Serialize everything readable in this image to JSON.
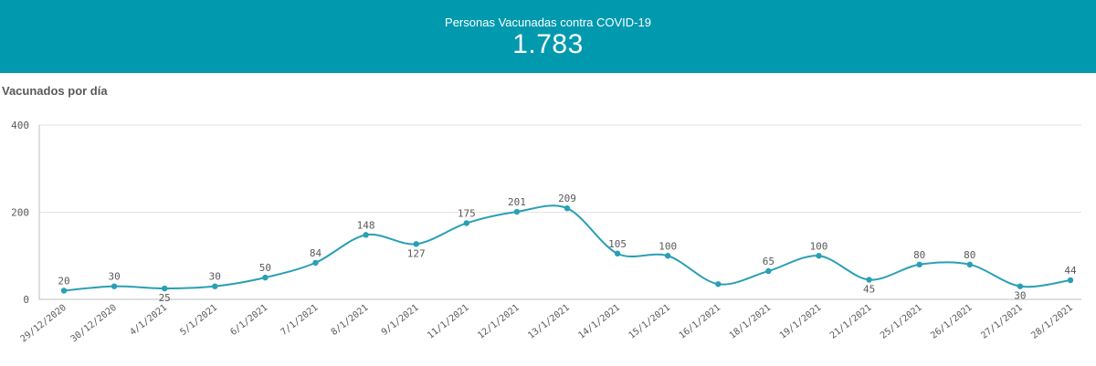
{
  "header": {
    "kpi_label": "Personas Vacunadas contra COVID-19",
    "kpi_value": "1.783",
    "background_color": "#0099ae"
  },
  "chart_data": {
    "type": "line",
    "title": "Vacunados por día",
    "xlabel": "",
    "ylabel": "",
    "ylim": [
      0,
      400
    ],
    "yticks": [
      0,
      200,
      400
    ],
    "grid": true,
    "line_color": "#2a9fb5",
    "categories": [
      "29/12/2020",
      "30/12/2020",
      "4/1/2021",
      "5/1/2021",
      "6/1/2021",
      "7/1/2021",
      "8/1/2021",
      "9/1/2021",
      "11/1/2021",
      "12/1/2021",
      "13/1/2021",
      "14/1/2021",
      "15/1/2021",
      "16/1/2021",
      "18/1/2021",
      "19/1/2021",
      "21/1/2021",
      "25/1/2021",
      "26/1/2021",
      "27/1/2021",
      "28/1/2021"
    ],
    "values": [
      20,
      30,
      25,
      30,
      50,
      84,
      148,
      127,
      175,
      201,
      209,
      105,
      100,
      35,
      65,
      100,
      45,
      80,
      80,
      30,
      44
    ],
    "data_labels": [
      "20",
      "30",
      "25",
      "30",
      "50",
      "84",
      "148",
      "127",
      "175",
      "201",
      "209",
      "105",
      "100",
      "",
      "65",
      "100",
      "45",
      "80",
      "80",
      "30",
      "44"
    ]
  }
}
